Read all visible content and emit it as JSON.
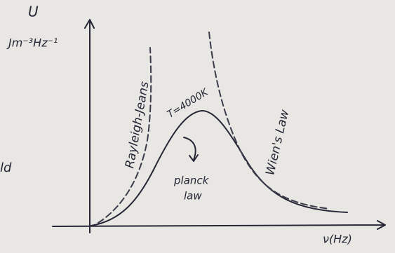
{
  "axes": {
    "y_label": "U",
    "y_units": "Jm⁻³Hz⁻¹",
    "x_label": "ν(Hz)"
  },
  "curves": {
    "rayleigh_jeans": "Rayleigh-Jeans",
    "wien": "Wien's Law",
    "temperature": "T=4000K",
    "planck": [
      "planck",
      "law"
    ]
  },
  "margin_text": "ld"
}
